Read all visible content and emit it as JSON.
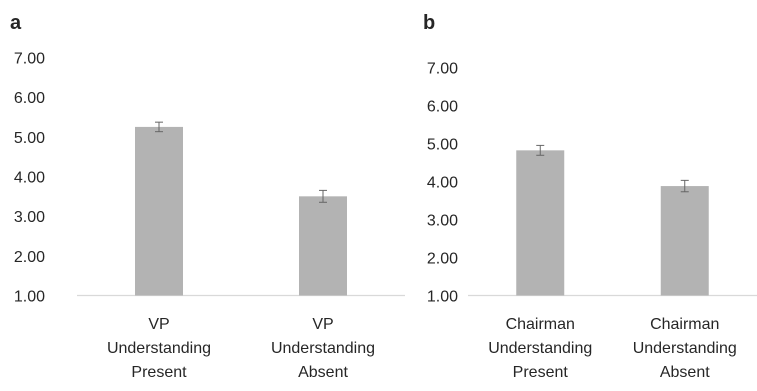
{
  "chart_data": [
    {
      "panel": "a",
      "type": "bar",
      "categories": [
        [
          "VP",
          "Understanding",
          "Present"
        ],
        [
          "VP",
          "Understanding",
          "Absent"
        ]
      ],
      "values": [
        5.25,
        3.5
      ],
      "errors": [
        0.12,
        0.15
      ],
      "ylim": [
        1,
        7
      ],
      "yticks": [
        "1.00",
        "2.00",
        "3.00",
        "4.00",
        "5.00",
        "6.00",
        "7.00"
      ],
      "grid": false,
      "bar_color": "#b3b3b3",
      "error_color": "#666666",
      "axis_color": "#d9d9d9"
    },
    {
      "panel": "b",
      "type": "bar",
      "categories": [
        [
          "Chairman",
          "Understanding",
          "Present"
        ],
        [
          "Chairman",
          "Understanding",
          "Absent"
        ]
      ],
      "values": [
        4.82,
        3.88
      ],
      "errors": [
        0.13,
        0.15
      ],
      "ylim": [
        1,
        7
      ],
      "yticks": [
        "1.00",
        "2.00",
        "3.00",
        "4.00",
        "5.00",
        "6.00",
        "7.00"
      ],
      "grid": false,
      "bar_color": "#b3b3b3",
      "error_color": "#666666",
      "axis_color": "#d9d9d9"
    }
  ]
}
